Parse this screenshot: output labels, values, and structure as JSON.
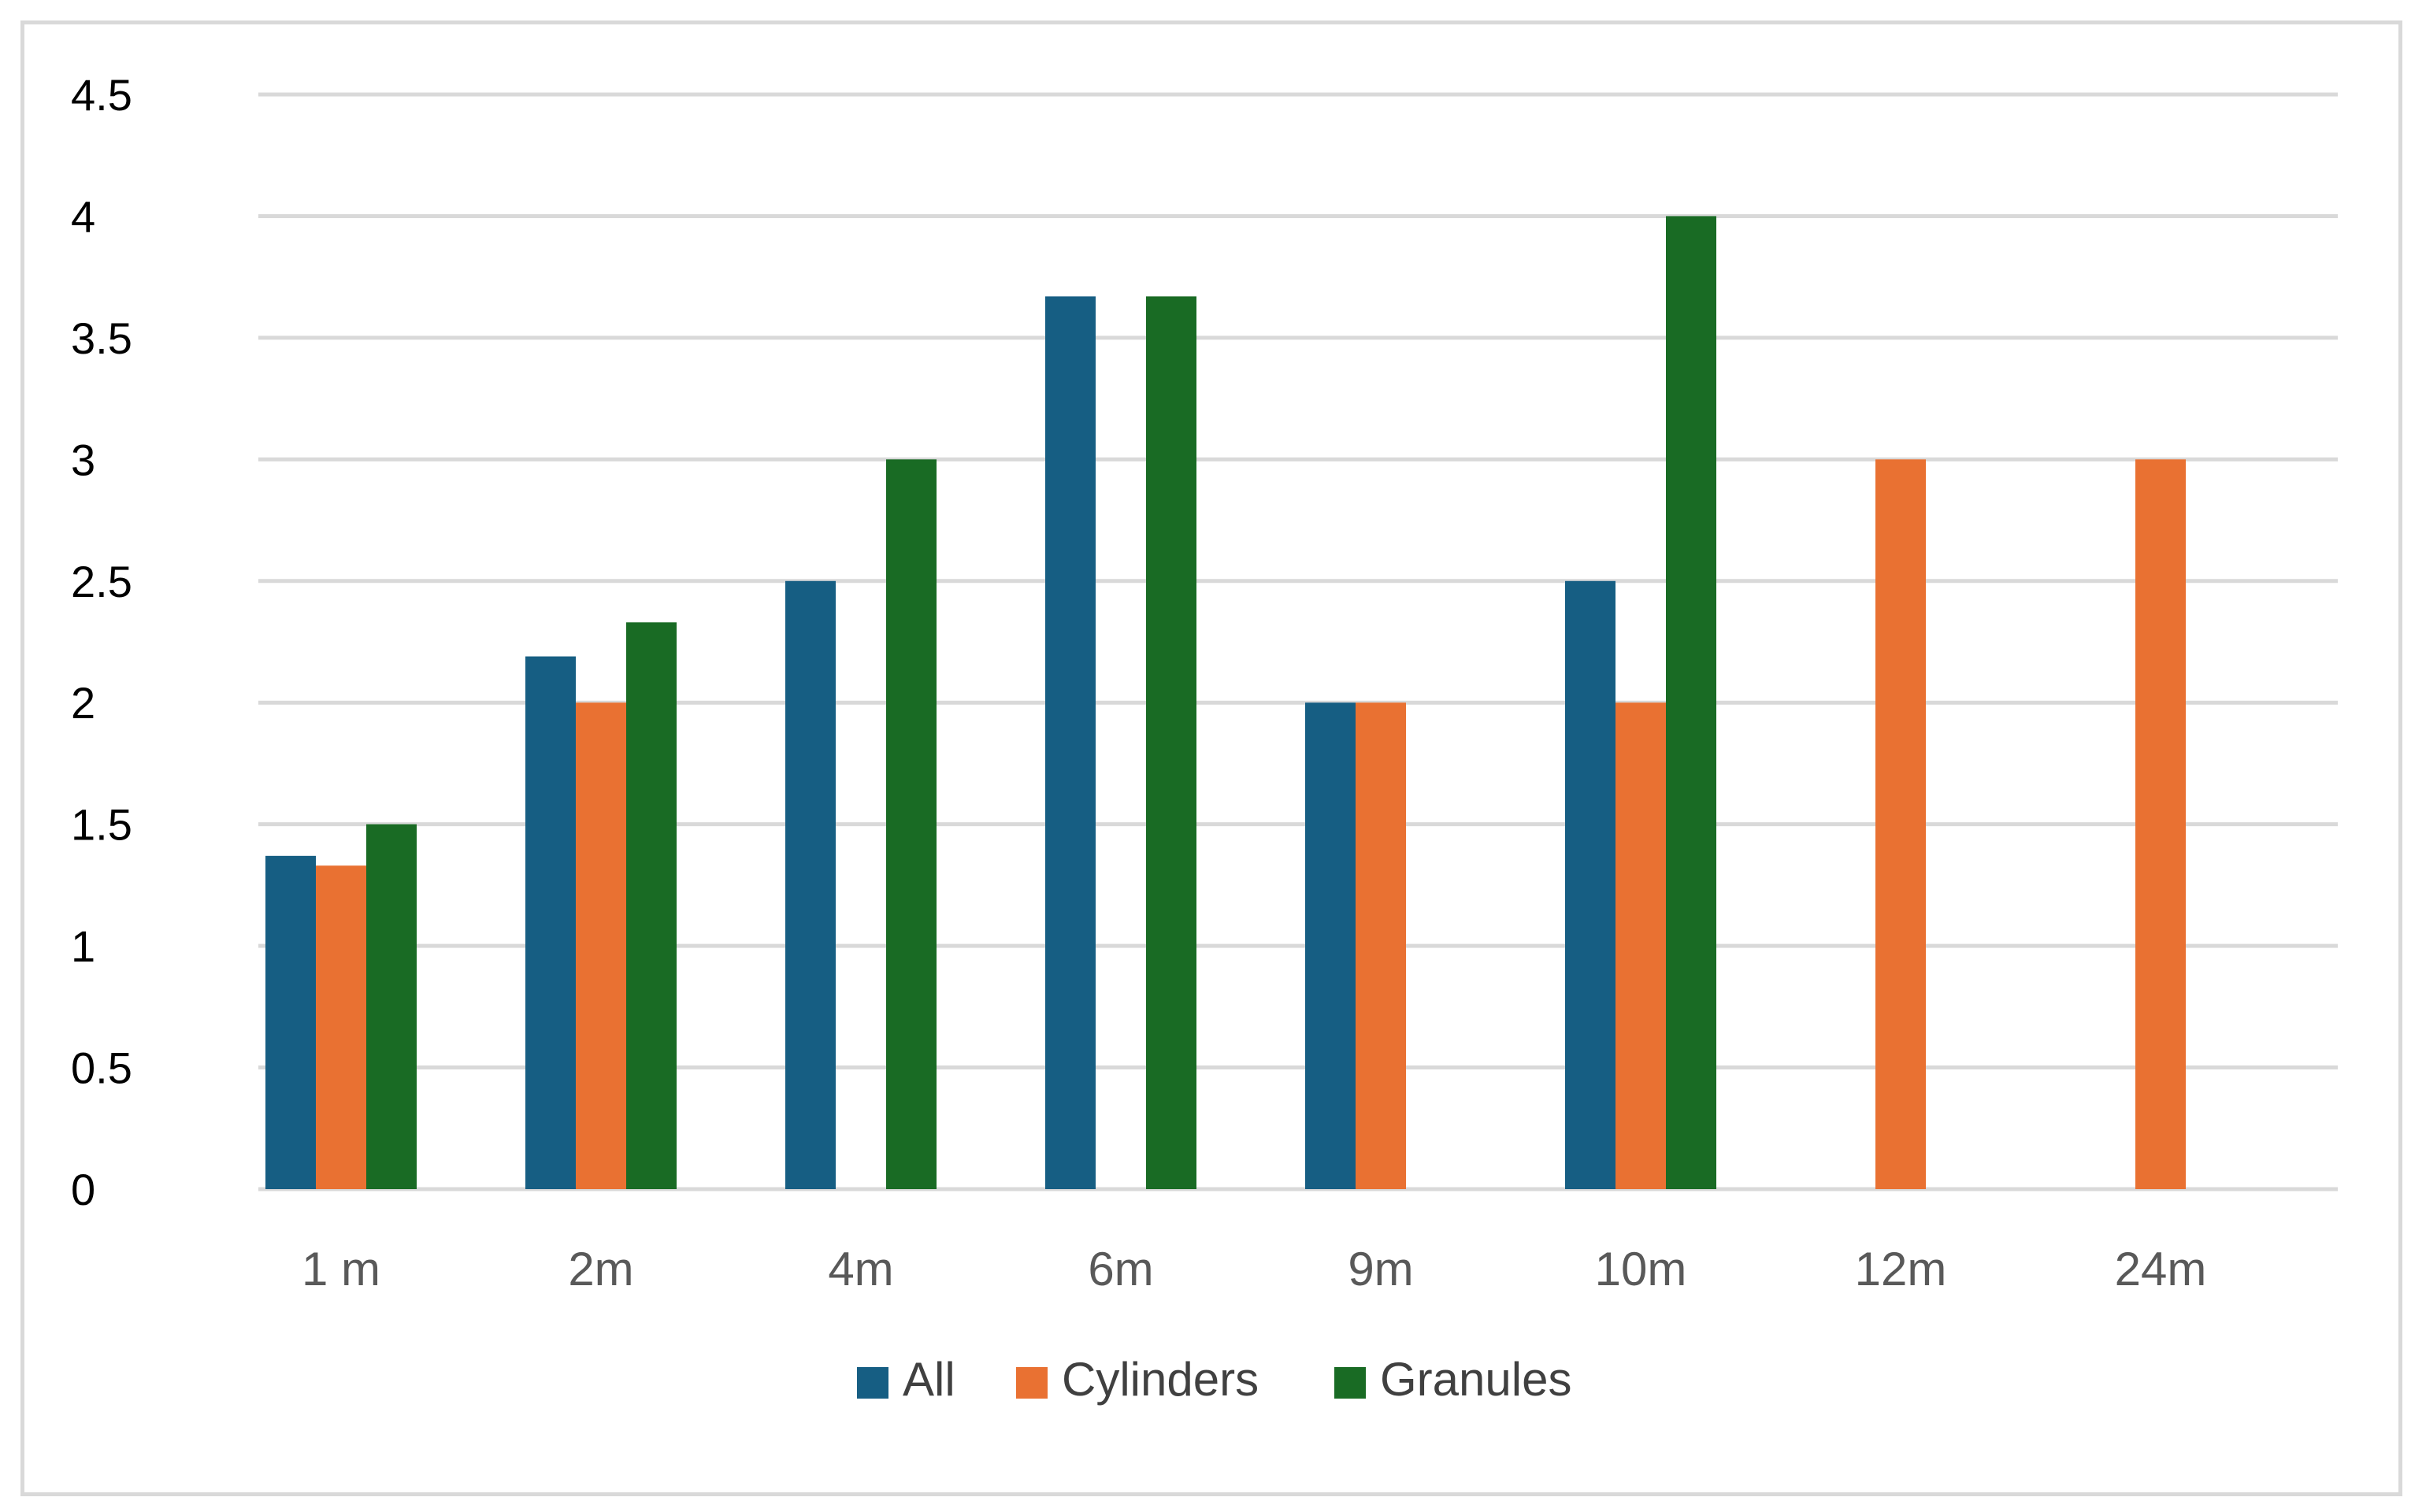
{
  "chart_data": {
    "type": "bar",
    "categories": [
      "1 m",
      "2m",
      "4m",
      "6m",
      "9m",
      "10m",
      "12m",
      "24m"
    ],
    "series": [
      {
        "name": "All",
        "color": "#165e83",
        "values": [
          1.37,
          2.19,
          2.5,
          3.67,
          2,
          2.5,
          null,
          null
        ]
      },
      {
        "name": "Cylinders",
        "color": "#e97132",
        "values": [
          1.33,
          2,
          null,
          null,
          2,
          2,
          3,
          3
        ]
      },
      {
        "name": "Granules",
        "color": "#196b24",
        "values": [
          1.5,
          2.33,
          3,
          3.67,
          null,
          4,
          null,
          null
        ]
      }
    ],
    "yticks": [
      "0",
      "0.5",
      "1",
      "1.5",
      "2",
      "2.5",
      "3",
      "3.5",
      "4",
      "4.5"
    ],
    "ylim": [
      0,
      4.5
    ],
    "grid": true,
    "legend_position": "bottom",
    "gridline_color": "#d9d9d9"
  }
}
